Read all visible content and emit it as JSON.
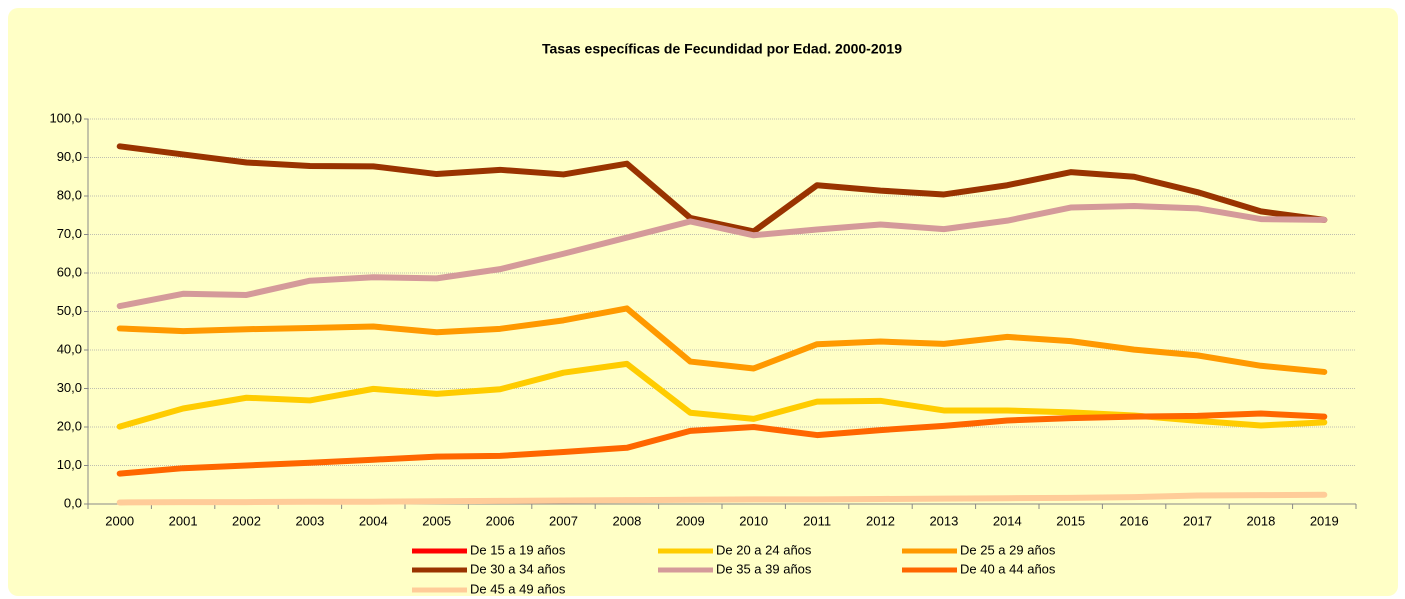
{
  "chart_data": {
    "type": "line",
    "title": "Tasas específicas de Fecundidad por Edad. 2000-2019",
    "categories": [
      "2000",
      "2001",
      "2002",
      "2003",
      "2004",
      "2005",
      "2006",
      "2007",
      "2008",
      "2009",
      "2010",
      "2011",
      "2012",
      "2013",
      "2014",
      "2015",
      "2016",
      "2017",
      "2018",
      "2019"
    ],
    "ylim": [
      0,
      100
    ],
    "yticks": [
      {
        "value": 0,
        "label": "0,0"
      },
      {
        "value": 10,
        "label": "10,0"
      },
      {
        "value": 20,
        "label": "20,0"
      },
      {
        "value": 30,
        "label": "30,0"
      },
      {
        "value": 40,
        "label": "40,0"
      },
      {
        "value": 50,
        "label": "50,0"
      },
      {
        "value": 60,
        "label": "60,0"
      },
      {
        "value": 70,
        "label": "70,0"
      },
      {
        "value": 80,
        "label": "80,0"
      },
      {
        "value": 90,
        "label": "90,0"
      },
      {
        "value": 100,
        "label": "100,0"
      }
    ],
    "grid": true,
    "legend": "bottom",
    "series": [
      {
        "name": "De 15 a 19 años",
        "color": "#ff0000",
        "values": [
          null,
          null,
          null,
          null,
          null,
          null,
          null,
          null,
          null,
          null,
          null,
          null,
          null,
          null,
          null,
          null,
          null,
          null,
          null,
          null
        ]
      },
      {
        "name": "De 20 a 24 años",
        "color": "#ffcc00",
        "values": [
          20.1,
          24.8,
          27.6,
          26.9,
          29.9,
          28.6,
          29.8,
          34.1,
          36.4,
          23.7,
          22.1,
          26.6,
          26.8,
          24.3,
          24.3,
          23.8,
          23.0,
          21.6,
          20.4,
          21.2
        ]
      },
      {
        "name": "De 25 a 29 años",
        "color": "#ff9900",
        "values": [
          45.6,
          44.9,
          45.4,
          45.7,
          46.1,
          44.6,
          45.5,
          47.7,
          50.8,
          37.0,
          35.2,
          41.5,
          42.2,
          41.6,
          43.4,
          42.3,
          40.1,
          38.6,
          35.9,
          34.3
        ]
      },
      {
        "name": "De 30 a 34 años",
        "color": "#993300",
        "values": [
          92.9,
          90.8,
          88.7,
          87.8,
          87.7,
          85.7,
          86.8,
          85.6,
          88.4,
          74.3,
          70.8,
          82.8,
          81.4,
          80.4,
          82.8,
          86.2,
          85.0,
          81.0,
          76.0,
          73.8
        ]
      },
      {
        "name": "De 35 a 39 años",
        "color": "#d49a9a",
        "values": [
          51.4,
          54.6,
          54.3,
          58.0,
          58.9,
          58.6,
          61.0,
          65.0,
          69.2,
          73.4,
          69.8,
          71.3,
          72.6,
          71.4,
          73.6,
          77.0,
          77.4,
          76.8,
          74.0,
          73.8
        ]
      },
      {
        "name": "De 40 a 44 años",
        "color": "#ff6600",
        "values": [
          7.9,
          9.3,
          10.0,
          10.7,
          11.5,
          12.3,
          12.5,
          13.5,
          14.6,
          19.0,
          20.0,
          17.9,
          19.2,
          20.3,
          21.7,
          22.3,
          22.7,
          22.9,
          23.5,
          22.7
        ]
      },
      {
        "name": "De 45 a 49 años",
        "color": "#ffcc99",
        "values": [
          0.4,
          0.5,
          0.5,
          0.6,
          0.6,
          0.7,
          0.8,
          0.9,
          1.0,
          1.1,
          1.2,
          1.2,
          1.3,
          1.4,
          1.5,
          1.6,
          1.8,
          2.2,
          2.3,
          2.4
        ]
      }
    ]
  }
}
